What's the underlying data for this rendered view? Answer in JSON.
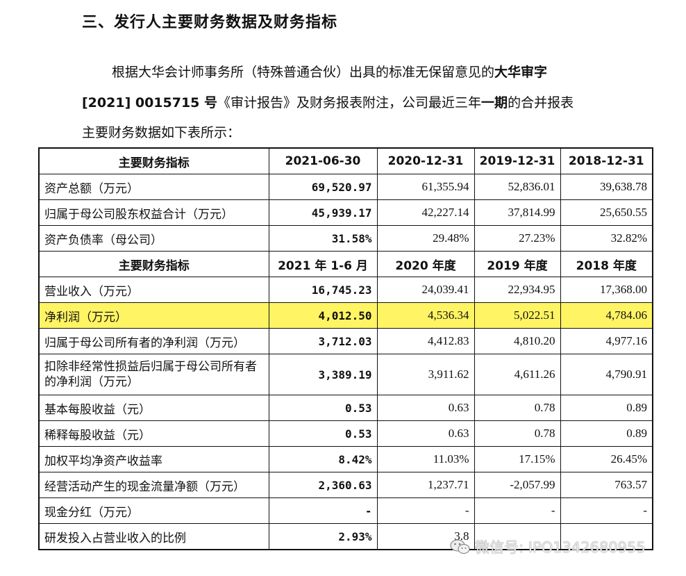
{
  "heading": "三、发行人主要财务数据及财务指标",
  "intro": {
    "line1_normal": "根据大华会计师事务所（特殊普通合伙）出具的标准无保留意见的",
    "line1_bold": "大华审字",
    "line2_bold1": "[2021] 0015715 号",
    "line2_normal1": "《审计报告》及财务报表附注，公司最近三年",
    "line2_bold2": "一期",
    "line2_normal2": "的合并报表",
    "line3": "主要财务数据如下表所示："
  },
  "table": {
    "header1": [
      "主要财务指标",
      "2021-06-30",
      "2020-12-31",
      "2019-12-31",
      "2018-12-31"
    ],
    "section1": [
      {
        "label": "资产总额（万元）",
        "values": [
          "69,520.97",
          "61,355.94",
          "52,836.01",
          "39,638.78"
        ]
      },
      {
        "label": "归属于母公司股东权益合计（万元）",
        "values": [
          "45,939.17",
          "42,227.14",
          "37,814.99",
          "25,650.55"
        ]
      },
      {
        "label": "资产负债率（母公司）",
        "values": [
          "31.58%",
          "29.48%",
          "27.23%",
          "32.82%"
        ]
      }
    ],
    "header2": [
      "主要财务指标",
      "2021 年 1-6 月",
      "2020 年度",
      "2019 年度",
      "2018 年度"
    ],
    "section2": [
      {
        "label": "营业收入（万元）",
        "values": [
          "16,745.23",
          "24,039.41",
          "22,934.95",
          "17,368.00"
        ]
      },
      {
        "label": "净利润（万元）",
        "values": [
          "4,012.50",
          "4,536.34",
          "5,022.51",
          "4,784.06"
        ]
      },
      {
        "label": "归属于母公司所有者的净利润（万元）",
        "values": [
          "3,712.03",
          "4,412.83",
          "4,810.20",
          "4,977.16"
        ]
      },
      {
        "label": "扣除非经常性损益后归属于母公司所有者的净利润（万元）",
        "values": [
          "3,389.19",
          "3,911.62",
          "4,611.26",
          "4,790.91"
        ]
      },
      {
        "label": "基本每股收益（元）",
        "values": [
          "0.53",
          "0.63",
          "0.78",
          "0.89"
        ]
      },
      {
        "label": "稀释每股收益（元）",
        "values": [
          "0.53",
          "0.63",
          "0.78",
          "0.89"
        ]
      },
      {
        "label": "加权平均净资产收益率",
        "values": [
          "8.42%",
          "11.03%",
          "17.15%",
          "26.45%"
        ]
      },
      {
        "label": "经营活动产生的现金流量净额（万元）",
        "values": [
          "2,360.63",
          "1,237.71",
          "-2,057.99",
          "763.57"
        ]
      },
      {
        "label": "现金分红（万元）",
        "values": [
          "-",
          "-",
          "-",
          "-"
        ]
      },
      {
        "label": "研发投入占营业收入的比例",
        "values": [
          "2.93%",
          "3.8",
          "",
          ""
        ]
      }
    ],
    "highlight_color": "#fff463"
  },
  "watermark": {
    "icon": "wechat-icon",
    "text": "微信号: IPO1342680955"
  }
}
